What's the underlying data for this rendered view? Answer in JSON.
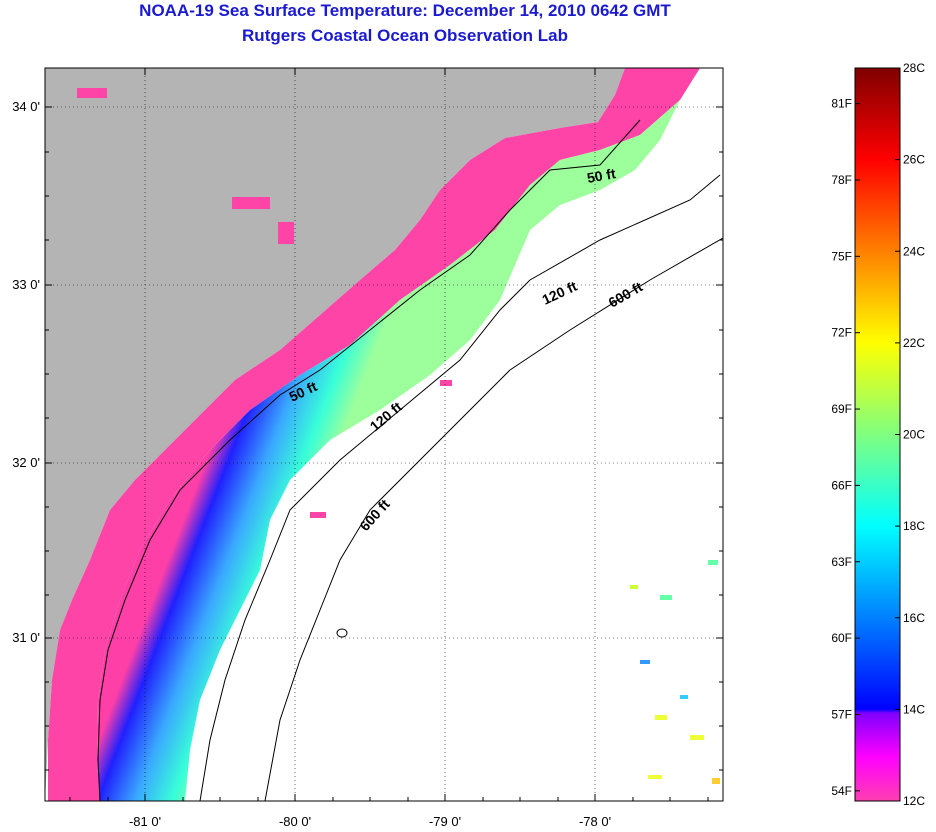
{
  "title": "NOAA-19 Sea Surface Temperature:  December 14, 2010 0642 GMT",
  "subtitle": "Rutgers Coastal Ocean Observation Lab",
  "map": {
    "lat_ticks": [
      "34 0'",
      "33 0'",
      "32 0'",
      "31 0'"
    ],
    "lon_ticks": [
      "-81 0'",
      "-80 0'",
      "-79 0'",
      "-78 0'"
    ],
    "contour_labels": {
      "c50_north": "50 ft",
      "c50_south": "50 ft",
      "c120_north": "120 ft",
      "c120_south": "120 ft",
      "c600_north": "600 ft",
      "c600_south": "600 ft"
    },
    "colors": {
      "land": "#b4b4b4",
      "ocean_nodata": "#ffffff",
      "sst_cold": "#ff44aa",
      "sst_warm": "#33ffcc"
    }
  },
  "colorbar": {
    "fahrenheit_labels": [
      "81F",
      "78F",
      "75F",
      "72F",
      "69F",
      "66F",
      "63F",
      "60F",
      "57F",
      "54F"
    ],
    "celsius_labels": [
      "28C",
      "26C",
      "24C",
      "22C",
      "20C",
      "18C",
      "16C",
      "14C",
      "12C"
    ],
    "range_c": [
      12,
      28
    ]
  }
}
